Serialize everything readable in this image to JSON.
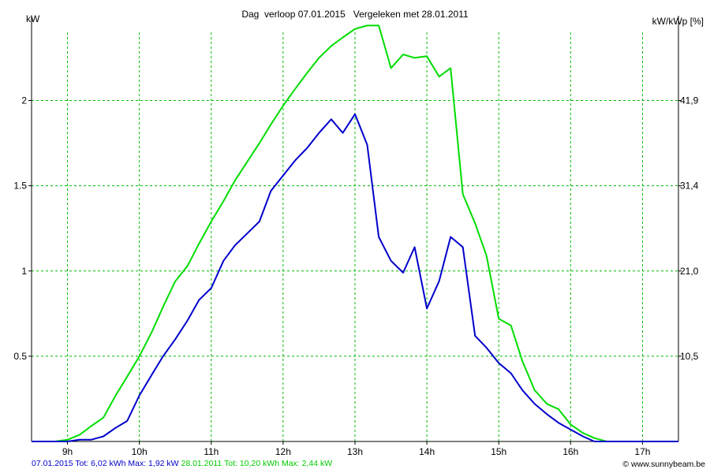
{
  "chart_data": {
    "type": "line",
    "title": "Dag  verloop 07.01.2015   Vergeleken met 28.01.2011",
    "ylabel": "kW",
    "ylabel_right": "kW/kWp [%]",
    "ylim": [
      0,
      2.4
    ],
    "y_ticks": [
      0.5,
      1,
      1.5,
      2
    ],
    "y_tick_labels": [
      "0.5",
      "1",
      "1.5",
      "2"
    ],
    "y_right_ticks": [
      0.5,
      1,
      1.5,
      2
    ],
    "y_right_tick_labels": [
      "10,5",
      "21,0",
      "31,4",
      "41,9"
    ],
    "x_range": [
      8.5,
      17.5
    ],
    "x_ticks": [
      9,
      10,
      11,
      12,
      13,
      14,
      15,
      16,
      17
    ],
    "x_tick_labels": [
      "9h",
      "10h",
      "11h",
      "12h",
      "13h",
      "14h",
      "15h",
      "16h",
      "17h"
    ],
    "grid": true,
    "series": [
      {
        "color": "#00dd00",
        "x": [
          8.5,
          8.83,
          9.0,
          9.17,
          9.33,
          9.5,
          9.67,
          9.83,
          10.0,
          10.17,
          10.33,
          10.5,
          10.67,
          10.83,
          11.0,
          11.17,
          11.33,
          11.5,
          11.67,
          11.83,
          12.0,
          12.17,
          12.33,
          12.5,
          12.67,
          12.83,
          13.0,
          13.17,
          13.33,
          13.5,
          13.67,
          13.83,
          14.0,
          14.17,
          14.33,
          14.5,
          14.67,
          14.83,
          15.0,
          15.17,
          15.33,
          15.5,
          15.67,
          15.83,
          16.0,
          16.17,
          16.33,
          16.5,
          16.67,
          16.83,
          17.0,
          17.17,
          17.33,
          17.5
        ],
        "values": [
          0.0,
          0.0,
          0.01,
          0.04,
          0.09,
          0.14,
          0.27,
          0.38,
          0.5,
          0.64,
          0.79,
          0.94,
          1.03,
          1.16,
          1.29,
          1.41,
          1.53,
          1.64,
          1.75,
          1.86,
          1.97,
          2.07,
          2.16,
          2.25,
          2.32,
          2.37,
          2.42,
          2.44,
          2.44,
          2.19,
          2.27,
          2.25,
          2.26,
          2.14,
          2.19,
          1.45,
          1.28,
          1.09,
          0.72,
          0.68,
          0.47,
          0.3,
          0.22,
          0.19,
          0.1,
          0.05,
          0.02,
          0.0,
          0.0,
          0.0,
          0.0,
          0.0,
          0.0,
          0.0
        ]
      },
      {
        "color": "#0000cc",
        "x": [
          8.5,
          8.83,
          9.0,
          9.17,
          9.33,
          9.5,
          9.67,
          9.83,
          10.0,
          10.17,
          10.33,
          10.5,
          10.67,
          10.83,
          11.0,
          11.17,
          11.33,
          11.5,
          11.67,
          11.83,
          12.0,
          12.17,
          12.33,
          12.5,
          12.67,
          12.83,
          13.0,
          13.17,
          13.33,
          13.5,
          13.67,
          13.83,
          14.0,
          14.17,
          14.33,
          14.5,
          14.67,
          14.83,
          15.0,
          15.17,
          15.33,
          15.5,
          15.67,
          15.83,
          16.0,
          16.17,
          16.33,
          16.5,
          16.67,
          16.83,
          17.0,
          17.17,
          17.33,
          17.5
        ],
        "values": [
          0.0,
          0.0,
          0.0,
          0.01,
          0.01,
          0.03,
          0.08,
          0.12,
          0.27,
          0.39,
          0.5,
          0.6,
          0.71,
          0.83,
          0.9,
          1.06,
          1.15,
          1.22,
          1.29,
          1.47,
          1.56,
          1.65,
          1.72,
          1.81,
          1.89,
          1.81,
          1.92,
          1.74,
          1.2,
          1.06,
          0.99,
          1.14,
          0.78,
          0.94,
          1.2,
          1.14,
          0.62,
          0.55,
          0.46,
          0.4,
          0.3,
          0.22,
          0.16,
          0.11,
          0.07,
          0.03,
          0.0,
          0.0,
          0.0,
          0.0,
          0.0,
          0.0,
          0.0,
          0.0
        ]
      }
    ]
  },
  "footer": {
    "series1_text": "07.01.2015 Tot: 6,02 kWh Max: 1,92 kW",
    "series2_text": "28.01.2011 Tot: 10,20 kWh Max: 2,44 kW"
  },
  "credit": "© www.sunnybeam.be"
}
